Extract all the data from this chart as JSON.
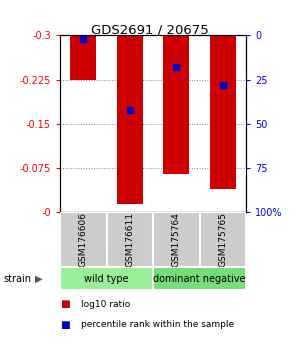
{
  "title": "GDS2691 / 20675",
  "samples": [
    "GSM176606",
    "GSM176611",
    "GSM175764",
    "GSM175765"
  ],
  "log10_ratio": [
    -0.225,
    -0.015,
    -0.065,
    -0.04
  ],
  "percentile_rank": [
    2,
    42,
    18,
    28
  ],
  "bar_color": "#cc0000",
  "blue_color": "#0000cc",
  "ymin": -0.3,
  "ymax": 0.0,
  "yticks_left": [
    0.0,
    -0.075,
    -0.15,
    -0.225,
    -0.3
  ],
  "yticks_left_labels": [
    "-0",
    "-0.075",
    "-0.15",
    "-0.225",
    "-0.3"
  ],
  "yticks_right": [
    100,
    75,
    50,
    25,
    0
  ],
  "yticks_right_labels": [
    "100%",
    "75",
    "50",
    "25",
    "0"
  ],
  "groups": [
    {
      "label": "wild type",
      "samples": [
        0,
        1
      ],
      "color": "#99ee99"
    },
    {
      "label": "dominant negative",
      "samples": [
        2,
        3
      ],
      "color": "#77dd77"
    }
  ],
  "legend_items": [
    {
      "color": "#cc0000",
      "label": "log10 ratio"
    },
    {
      "color": "#0000cc",
      "label": "percentile rank within the sample"
    }
  ],
  "strain_label": "strain",
  "background_color": "#ffffff",
  "grid_color": "#888888",
  "sample_box_color": "#cccccc",
  "bar_width": 0.55
}
